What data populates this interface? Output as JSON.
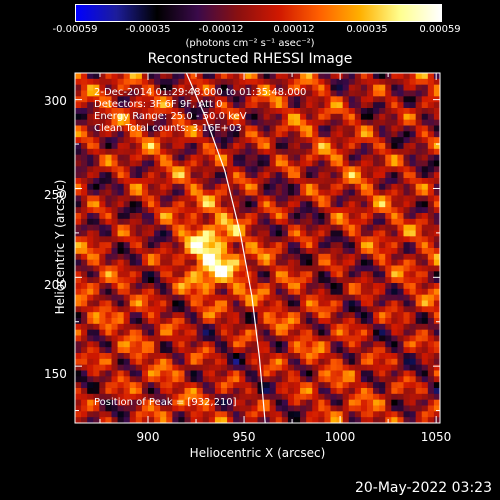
{
  "colorbar": {
    "ticks": [
      "-0.00059",
      "-0.00035",
      "-0.00012",
      "0.00012",
      "0.00035",
      "0.00059"
    ],
    "units": "(photons cm⁻² s⁻¹ asec⁻²)",
    "colors": [
      "#0000ff",
      "#1d1d9a",
      "#000000",
      "#3a0a4a",
      "#8a1010",
      "#d01800",
      "#ff6000",
      "#ffb000",
      "#ffff90",
      "#ffffff"
    ]
  },
  "chart_data": {
    "type": "heatmap",
    "title": "Reconstructed RHESSI Image",
    "xlabel": "Heliocentric X (arcsec)",
    "ylabel": "Heliocentric Y (arcsec)",
    "xlim": [
      862,
      1052
    ],
    "ylim": [
      118,
      315
    ],
    "xticks": [
      "900",
      "950",
      "1000",
      "1050"
    ],
    "yticks": [
      "150",
      "200",
      "250",
      "300"
    ],
    "info": [
      "2-Dec-2014 01:29:48.000 to 01:35:48.000",
      "Detectors: 3F 6F 9F, Att 0",
      "Energy Range: 25.0 - 50.0 keV",
      "Clean    Total counts: 3.16E+03"
    ],
    "peak_label": "Position of Peak = [932,210]",
    "peak": [
      932,
      210
    ],
    "limb": [
      [
        920,
        315
      ],
      [
        930,
        290
      ],
      [
        940,
        260
      ],
      [
        948,
        225
      ],
      [
        954,
        190
      ],
      [
        958,
        155
      ],
      [
        961,
        118
      ]
    ]
  },
  "footer": {
    "timestamp": "20-May-2022 03:23"
  }
}
